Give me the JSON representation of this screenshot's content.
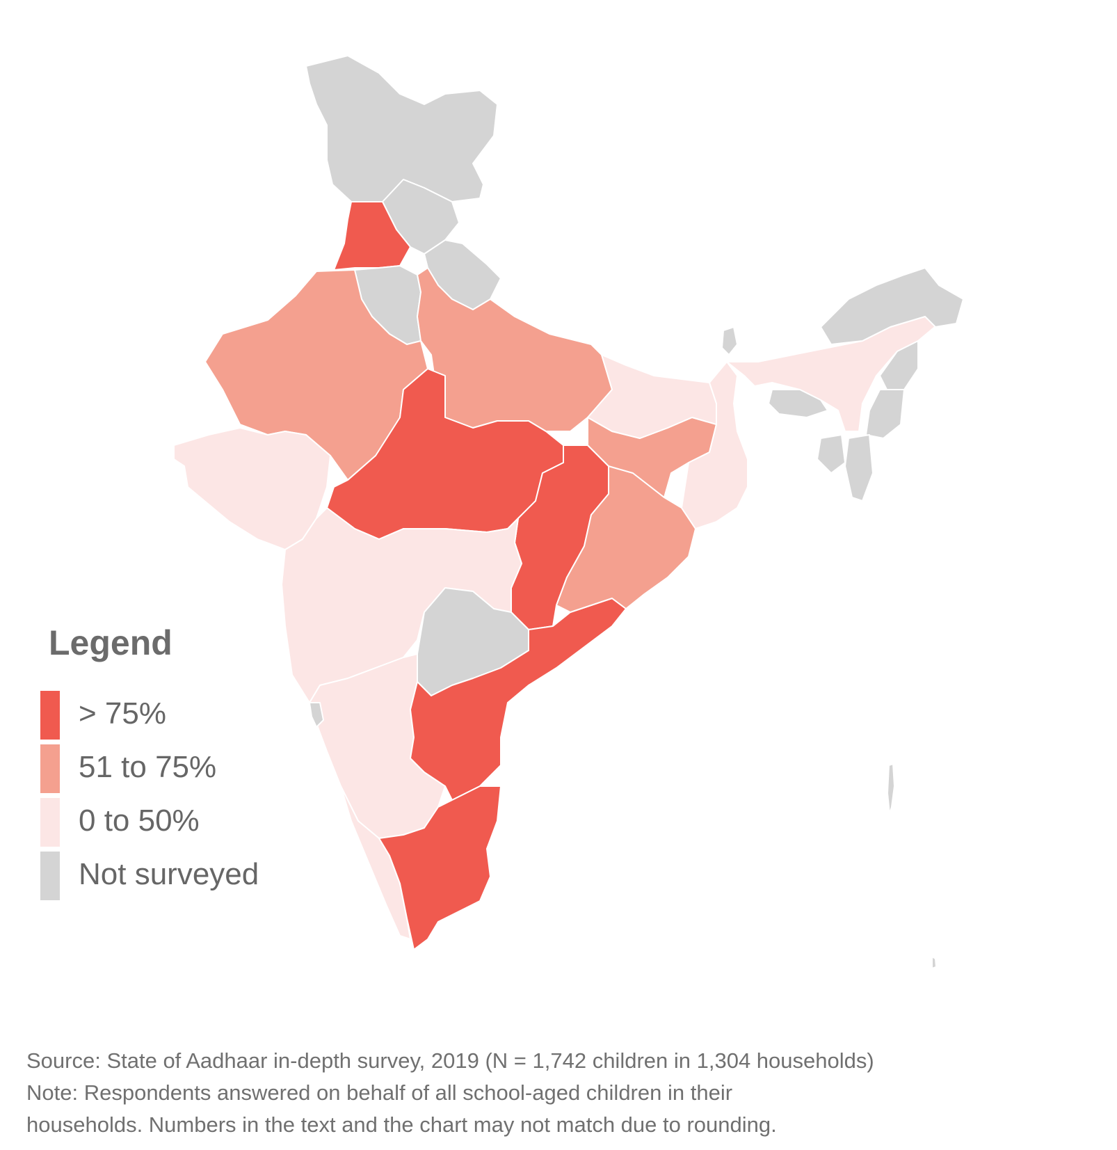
{
  "colors": {
    "gt75": "#f05a4f",
    "51to75": "#f4a08f",
    "0to50": "#fce6e5",
    "not_surveyed": "#d4d4d4"
  },
  "legend": {
    "title": "Legend",
    "items": [
      {
        "label": "> 75%",
        "color": "#f05a4f"
      },
      {
        "label": "51 to 75%",
        "color": "#f4a08f"
      },
      {
        "label": "0 to 50%",
        "color": "#fce6e5"
      },
      {
        "label": "Not surveyed",
        "color": "#d4d4d4"
      }
    ]
  },
  "footnote": {
    "source": "Source: State of Aadhaar in-depth survey, 2019 (N = 1,742 children in 1,304 households)",
    "note_line1": "Note: Respondents answered on behalf of all school-aged children in their",
    "note_line2": "households. Numbers in the text and the chart may not match due to rounding."
  }
}
